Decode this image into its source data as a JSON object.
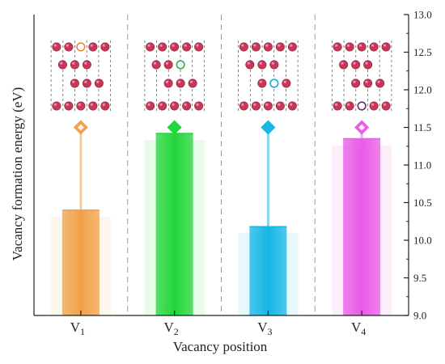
{
  "chart_data": {
    "type": "bar",
    "categories": [
      "V1",
      "V2",
      "V3",
      "V4"
    ],
    "category_labels": [
      {
        "main": "V",
        "sub": "1"
      },
      {
        "main": "V",
        "sub": "2"
      },
      {
        "main": "V",
        "sub": "3"
      },
      {
        "main": "V",
        "sub": "4"
      }
    ],
    "values": [
      10.4,
      11.42,
      10.18,
      11.35
    ],
    "marker_values": [
      11.5,
      11.5,
      11.5,
      11.5
    ],
    "xlabel": "Vacancy position",
    "ylabel": "Vacancy formation energy (eV)",
    "ylim": [
      9.0,
      13.0
    ],
    "yticks": [
      "9.0",
      "9.5",
      "10.0",
      "10.5",
      "11.0",
      "11.5",
      "12.0",
      "12.5",
      "13.0"
    ],
    "y_axis_side": "right",
    "grid": false,
    "colors": [
      "#f0a24a",
      "#22d63a",
      "#16b6e6",
      "#e85ce6"
    ],
    "vacancy_circle_colors": [
      "#f08a30",
      "#1fb84a",
      "#19a8d8",
      "#6a2a7a"
    ],
    "vacancy_layer": [
      1,
      2,
      3,
      4
    ],
    "atom_color": "#c8375a"
  }
}
